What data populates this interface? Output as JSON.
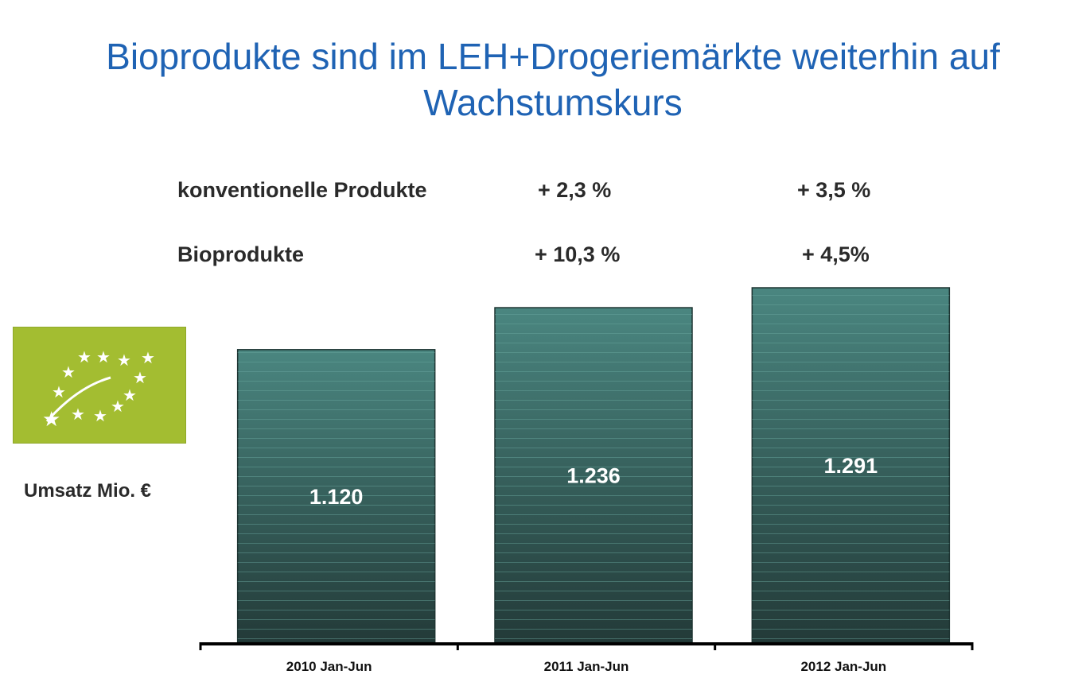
{
  "title_line1": "Bioprodukte sind im LEH+Drogeriemärkte weiterhin auf",
  "title_line2": "Wachstumskurs",
  "growth": {
    "conventional": {
      "label": "konventionelle Produkte",
      "values": [
        "+ 2,3 %",
        "+ 3,5 %"
      ]
    },
    "organic": {
      "label": "Bioprodukte",
      "values": [
        "+ 10,3 %",
        "+ 4,5%"
      ]
    }
  },
  "logo": {
    "name": "EU organic leaf logo",
    "color": "#a3bd31"
  },
  "chart_data": {
    "type": "bar",
    "title": "Bioprodukte sind im LEH+Drogeriemärkte weiterhin auf Wachstumskurs",
    "ylabel": "Umsatz Mio. €",
    "xlabel": "",
    "categories": [
      "2010 Jan-Jun",
      "2011 Jan-Jun",
      "2012 Jan-Jun"
    ],
    "values": [
      1120,
      1236,
      1291
    ],
    "value_labels": [
      "1.120",
      "1.236",
      "1.291"
    ],
    "ylim": [
      311,
      1291
    ],
    "grid": false,
    "bar_color_top": "#4a8680",
    "bar_color_bottom": "#233a38"
  }
}
